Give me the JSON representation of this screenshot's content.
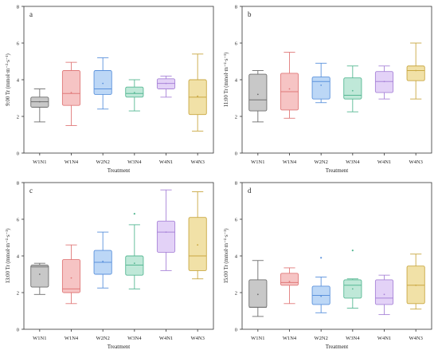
{
  "colors": {
    "W1N1": {
      "fill": "#c8c8c8",
      "stroke": "#6e6e6e"
    },
    "W1N4": {
      "fill": "#f6c4c4",
      "stroke": "#e07a7a"
    },
    "W2N2": {
      "fill": "#bcd7f6",
      "stroke": "#5b92dc"
    },
    "W3N4": {
      "fill": "#bfe8d8",
      "stroke": "#57b894"
    },
    "W4N1": {
      "fill": "#e3d2f7",
      "stroke": "#a985d8"
    },
    "W4N3": {
      "fill": "#f1e1a7",
      "stroke": "#c9a843"
    }
  },
  "chart_data": [
    {
      "type": "box",
      "panel_label": "a",
      "ylabel": "9:00 Tr (mmol·m⁻²·s⁻¹)",
      "xlabel": "Treatment",
      "ylim": [
        0,
        8
      ],
      "yticks": [
        0,
        2,
        4,
        6,
        8
      ],
      "categories": [
        "W1N1",
        "W1N4",
        "W2N2",
        "W3N4",
        "W4N1",
        "W4N3"
      ],
      "boxes": [
        {
          "min": 1.7,
          "q1": 2.5,
          "median": 2.8,
          "q3": 3.05,
          "max": 3.5,
          "mean": 2.8,
          "outliers": []
        },
        {
          "min": 1.5,
          "q1": 2.6,
          "median": 3.25,
          "q3": 4.5,
          "max": 4.95,
          "mean": 3.3,
          "outliers": []
        },
        {
          "min": 2.4,
          "q1": 3.2,
          "median": 3.5,
          "q3": 4.5,
          "max": 5.2,
          "mean": 3.8,
          "outliers": []
        },
        {
          "min": 2.3,
          "q1": 3.05,
          "median": 3.25,
          "q3": 3.6,
          "max": 4.0,
          "mean": 3.3,
          "outliers": []
        },
        {
          "min": 3.05,
          "q1": 3.5,
          "median": 3.8,
          "q3": 4.05,
          "max": 4.2,
          "mean": 3.8,
          "outliers": []
        },
        {
          "min": 1.2,
          "q1": 2.1,
          "median": 3.05,
          "q3": 4.0,
          "max": 5.4,
          "mean": 3.1,
          "outliers": []
        }
      ]
    },
    {
      "type": "box",
      "panel_label": "b",
      "ylabel": "11:00 Tr (mmol·m⁻²·s⁻¹)",
      "xlabel": "Treatment",
      "ylim": [
        0,
        8
      ],
      "yticks": [
        0,
        2,
        4,
        6,
        8
      ],
      "categories": [
        "W1N1",
        "W1N4",
        "W2N2",
        "W3N4",
        "W4N1",
        "W4N3"
      ],
      "boxes": [
        {
          "min": 1.7,
          "q1": 2.3,
          "median": 2.9,
          "q3": 4.3,
          "max": 4.5,
          "mean": 3.2,
          "outliers": []
        },
        {
          "min": 1.9,
          "q1": 2.35,
          "median": 3.35,
          "q3": 4.35,
          "max": 5.5,
          "mean": 3.5,
          "outliers": []
        },
        {
          "min": 2.75,
          "q1": 2.95,
          "median": 3.9,
          "q3": 4.15,
          "max": 4.9,
          "mean": 3.7,
          "outliers": []
        },
        {
          "min": 2.25,
          "q1": 2.95,
          "median": 3.15,
          "q3": 4.1,
          "max": 4.75,
          "mean": 3.4,
          "outliers": []
        },
        {
          "min": 2.95,
          "q1": 3.3,
          "median": 3.9,
          "q3": 4.45,
          "max": 4.75,
          "mean": 3.9,
          "outliers": []
        },
        {
          "min": 2.95,
          "q1": 3.95,
          "median": 4.5,
          "q3": 4.75,
          "max": 6.0,
          "mean": 4.5,
          "outliers": []
        }
      ]
    },
    {
      "type": "box",
      "panel_label": "c",
      "ylabel": "13:00 Tr (mmol·m⁻²·s⁻¹)",
      "xlabel": "Treatment",
      "ylim": [
        0,
        8
      ],
      "yticks": [
        0,
        2,
        4,
        6,
        8
      ],
      "categories": [
        "W1N1",
        "W1N4",
        "W2N2",
        "W3N4",
        "W4N1",
        "W4N3"
      ],
      "boxes": [
        {
          "min": 1.9,
          "q1": 2.3,
          "median": 3.4,
          "q3": 3.5,
          "max": 3.6,
          "mean": 3.0,
          "outliers": []
        },
        {
          "min": 1.4,
          "q1": 2.0,
          "median": 2.2,
          "q3": 3.8,
          "max": 4.6,
          "mean": 2.8,
          "outliers": []
        },
        {
          "min": 2.25,
          "q1": 3.0,
          "median": 3.65,
          "q3": 4.3,
          "max": 5.3,
          "mean": 3.7,
          "outliers": []
        },
        {
          "min": 2.2,
          "q1": 2.95,
          "median": 3.5,
          "q3": 4.0,
          "max": 5.7,
          "mean": 3.6,
          "outliers": [
            6.3
          ]
        },
        {
          "min": 3.2,
          "q1": 4.2,
          "median": 5.3,
          "q3": 5.9,
          "max": 7.6,
          "mean": 5.3,
          "outliers": []
        },
        {
          "min": 2.75,
          "q1": 3.2,
          "median": 4.0,
          "q3": 6.1,
          "max": 7.5,
          "mean": 4.6,
          "outliers": []
        }
      ]
    },
    {
      "type": "box",
      "panel_label": "d",
      "ylabel": "15:00 Tr (mmol·m⁻²·s⁻¹)",
      "xlabel": "Treatment",
      "ylim": [
        0,
        8
      ],
      "yticks": [
        0,
        2,
        4,
        6,
        8
      ],
      "categories": [
        "W1N1",
        "W1N4",
        "W2N2",
        "W3N4",
        "W4N1",
        "W4N3"
      ],
      "boxes": [
        {
          "min": 0.7,
          "q1": 1.2,
          "median": 1.2,
          "q3": 2.7,
          "max": 3.75,
          "mean": 1.9,
          "outliers": []
        },
        {
          "min": 1.4,
          "q1": 2.4,
          "median": 2.55,
          "q3": 3.05,
          "max": 3.35,
          "mean": 2.6,
          "outliers": []
        },
        {
          "min": 0.9,
          "q1": 1.35,
          "median": 1.85,
          "q3": 2.35,
          "max": 2.85,
          "mean": 1.8,
          "outliers": [
            3.9
          ]
        },
        {
          "min": 1.15,
          "q1": 1.7,
          "median": 2.4,
          "q3": 2.7,
          "max": 2.75,
          "mean": 2.2,
          "outliers": [
            4.3
          ]
        },
        {
          "min": 0.8,
          "q1": 1.35,
          "median": 1.7,
          "q3": 2.7,
          "max": 2.95,
          "mean": 1.9,
          "outliers": []
        },
        {
          "min": 1.1,
          "q1": 1.4,
          "median": 2.4,
          "q3": 3.45,
          "max": 4.1,
          "mean": 2.4,
          "outliers": []
        }
      ]
    }
  ]
}
